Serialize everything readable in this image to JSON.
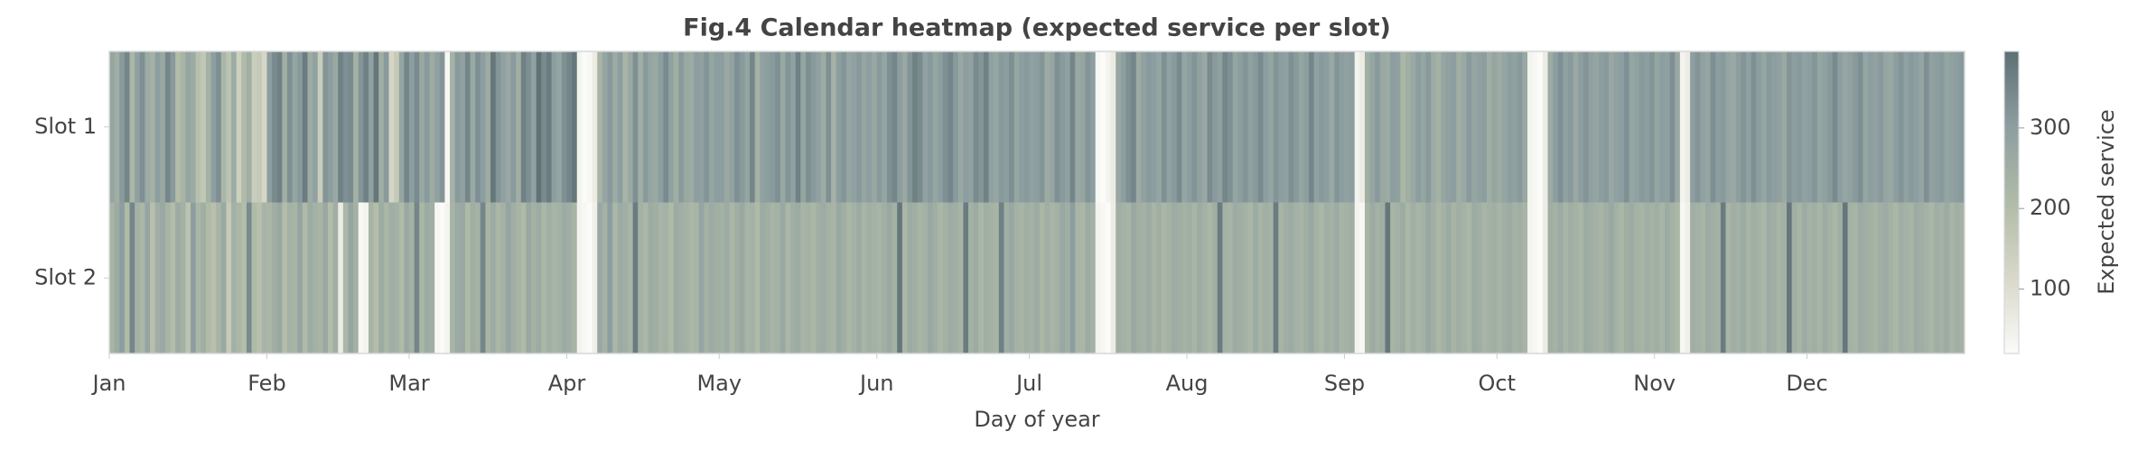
{
  "chart_data": {
    "type": "heatmap",
    "title": "Fig.4 Calendar heatmap (expected service per slot)",
    "xlabel": "Day of year",
    "rows": [
      "Slot 1",
      "Slot 2"
    ],
    "xlim": [
      0,
      365
    ],
    "xticks": [
      {
        "value": 0,
        "label": "Jan"
      },
      {
        "value": 31,
        "label": "Feb"
      },
      {
        "value": 59,
        "label": "Mar"
      },
      {
        "value": 90,
        "label": "Apr"
      },
      {
        "value": 120,
        "label": "May"
      },
      {
        "value": 151,
        "label": "Jun"
      },
      {
        "value": 181,
        "label": "Jul"
      },
      {
        "value": 212,
        "label": "Aug"
      },
      {
        "value": 243,
        "label": "Sep"
      },
      {
        "value": 273,
        "label": "Oct"
      },
      {
        "value": 304,
        "label": "Nov"
      },
      {
        "value": 334,
        "label": "Dec"
      }
    ],
    "colormap": [
      "#fbfbf9",
      "#d9d8c9",
      "#b0bba7",
      "#8d9ea0",
      "#5d7074"
    ],
    "colorbar": {
      "label": "Expected service",
      "lim": [
        20,
        395
      ],
      "ticks": [
        100,
        200,
        300
      ]
    },
    "values": [
      [
        280,
        250,
        310,
        350,
        220,
        290,
        330,
        260,
        240,
        300,
        270,
        350,
        310,
        200,
        230,
        280,
        260,
        190,
        170,
        240,
        300,
        330,
        220,
        180,
        260,
        140,
        210,
        250,
        150,
        160,
        120,
        300,
        340,
        360,
        250,
        330,
        280,
        310,
        370,
        260,
        290,
        150,
        320,
        300,
        270,
        360,
        330,
        340,
        240,
        320,
        360,
        290,
        380,
        250,
        310,
        120,
        160,
        280,
        350,
        300,
        340,
        270,
        310,
        260,
        290,
        320,
        30,
        240,
        310,
        290,
        350,
        270,
        330,
        300,
        260,
        380,
        320,
        290,
        270,
        310,
        250,
        360,
        330,
        290,
        390,
        340,
        370,
        300,
        280,
        330,
        350,
        380,
        40,
        20,
        30,
        60,
        230,
        280,
        310,
        260,
        300,
        230,
        270,
        330,
        250,
        310,
        280,
        270,
        300,
        340,
        290,
        250,
        310,
        270,
        260,
        300,
        290,
        320,
        280,
        300,
        300,
        270,
        290,
        330,
        310,
        280,
        350,
        240,
        290,
        300,
        310,
        330,
        270,
        320,
        290,
        360,
        280,
        330,
        310,
        290,
        260,
        330,
        240,
        300,
        320,
        280,
        290,
        310,
        280,
        300,
        270,
        310,
        280,
        330,
        350,
        300,
        270,
        320,
        360,
        340,
        290,
        310,
        280,
        300,
        330,
        350,
        310,
        270,
        300,
        290,
        340,
        320,
        360,
        290,
        280,
        310,
        300,
        330,
        280,
        300,
        310,
        290,
        300,
        320,
        260,
        280,
        330,
        310,
        290,
        350,
        270,
        280,
        320,
        300,
        30,
        20,
        40,
        60,
        270,
        300,
        330,
        350,
        260,
        290,
        310,
        300,
        280,
        330,
        290,
        310,
        340,
        280,
        300,
        320,
        290,
        270,
        340,
        310,
        290,
        350,
        330,
        280,
        300,
        320,
        290,
        310,
        340,
        300,
        280,
        320,
        300,
        290,
        330,
        310,
        280,
        300,
        350,
        290,
        310,
        300,
        270,
        320,
        300,
        290,
        300,
        40,
        60,
        250,
        280,
        310,
        270,
        260,
        300,
        290,
        220,
        250,
        270,
        300,
        280,
        310,
        260,
        240,
        280,
        290,
        300,
        250,
        270,
        310,
        280,
        290,
        300,
        250,
        280,
        260,
        280,
        300,
        290,
        310,
        270,
        40,
        30,
        20,
        60,
        260,
        300,
        330,
        290,
        310,
        270,
        300,
        320,
        290,
        280,
        300,
        310,
        270,
        290,
        300,
        330,
        280,
        290,
        310,
        300,
        320,
        280,
        300,
        290,
        330,
        270,
        40,
        60,
        300,
        320,
        290,
        280,
        330,
        300,
        310,
        280,
        270,
        300,
        320,
        290,
        330,
        300,
        280,
        310,
        300,
        290,
        270,
        320,
        300,
        310,
        290,
        300,
        320,
        280,
        290,
        310,
        340,
        300,
        280,
        290,
        310,
        330,
        280,
        300,
        290,
        310,
        280,
        270,
        300,
        320,
        290,
        310,
        300,
        280,
        330,
        290,
        300,
        310,
        280,
        290,
        300,
        310
      ],
      [
        230,
        260,
        300,
        210,
        350,
        240,
        220,
        280,
        190,
        250,
        270,
        230,
        200,
        260,
        240,
        180,
        300,
        220,
        250,
        210,
        190,
        230,
        270,
        160,
        240,
        220,
        200,
        340,
        210,
        190,
        230,
        220,
        250,
        270,
        200,
        240,
        230,
        280,
        210,
        260,
        240,
        230,
        270,
        200,
        250,
        60,
        220,
        280,
        240,
        30,
        40,
        230,
        200,
        260,
        220,
        250,
        240,
        210,
        270,
        240,
        350,
        220,
        260,
        250,
        30,
        20,
        40,
        230,
        260,
        270,
        210,
        250,
        240,
        350,
        230,
        260,
        220,
        240,
        280,
        250,
        230,
        210,
        270,
        240,
        260,
        220,
        250,
        230,
        240,
        260,
        250,
        230,
        40,
        30,
        20,
        50,
        270,
        240,
        300,
        220,
        260,
        250,
        230,
        370,
        240,
        220,
        260,
        250,
        230,
        240,
        210,
        260,
        250,
        240,
        220,
        230,
        280,
        240,
        260,
        250,
        240,
        260,
        220,
        250,
        270,
        230,
        240,
        210,
        260,
        250,
        230,
        240,
        270,
        220,
        250,
        260,
        230,
        240,
        220,
        250,
        260,
        240,
        230,
        270,
        250,
        220,
        240,
        260,
        230,
        250,
        240,
        230,
        250,
        270,
        240,
        380,
        220,
        260,
        250,
        230,
        240,
        270,
        250,
        220,
        240,
        260,
        250,
        230,
        370,
        240,
        260,
        220,
        250,
        240,
        230,
        360,
        250,
        270,
        240,
        230,
        250,
        240,
        260,
        220,
        250,
        230,
        240,
        270,
        250,
        300,
        230,
        220,
        260,
        240,
        40,
        30,
        20,
        60,
        250,
        240,
        230,
        270,
        250,
        240,
        260,
        230,
        250,
        220,
        240,
        260,
        250,
        240,
        250,
        230,
        260,
        240,
        220,
        250,
        370,
        240,
        230,
        260,
        250,
        240,
        220,
        260,
        230,
        250,
        240,
        370,
        230,
        250,
        260,
        240,
        230,
        250,
        270,
        240,
        220,
        250,
        240,
        260,
        230,
        240,
        250,
        40,
        30,
        230,
        260,
        240,
        250,
        380,
        230,
        240,
        260,
        220,
        250,
        230,
        240,
        270,
        250,
        220,
        240,
        260,
        230,
        250,
        240,
        220,
        260,
        250,
        230,
        240,
        250,
        230,
        250,
        260,
        240,
        250,
        230,
        40,
        30,
        20,
        60,
        250,
        240,
        260,
        230,
        250,
        240,
        220,
        260,
        250,
        240,
        230,
        250,
        270,
        240,
        220,
        250,
        260,
        240,
        230,
        250,
        240,
        250,
        230,
        260,
        240,
        220,
        30,
        50,
        250,
        240,
        230,
        260,
        250,
        240,
        370,
        230,
        250,
        240,
        260,
        230,
        250,
        240,
        220,
        260,
        250,
        230,
        240,
        380,
        250,
        230,
        260,
        240,
        250,
        230,
        260,
        240,
        220,
        250,
        380,
        240,
        230,
        260,
        250,
        240,
        230,
        250,
        260,
        240,
        220,
        250,
        240,
        230,
        260,
        250,
        240,
        220,
        250,
        240,
        260,
        230,
        250,
        240
      ]
    ]
  }
}
